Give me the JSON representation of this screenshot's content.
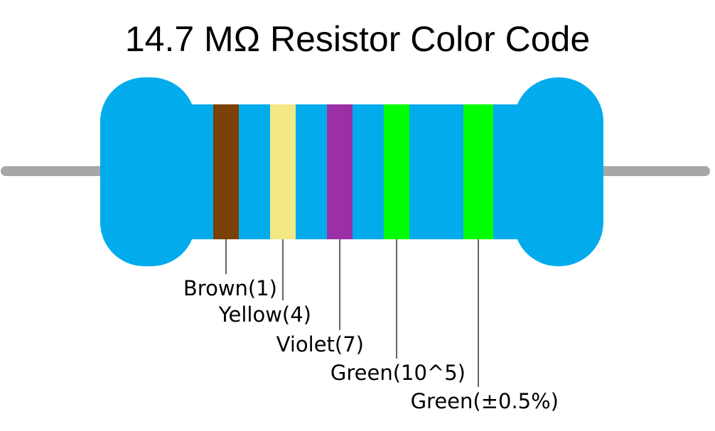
{
  "title": "14.7 MΩ Resistor Color Code",
  "colors": {
    "body": "#02acec",
    "lead": "#a7a7a9",
    "leader_line": "#000000"
  },
  "bands": [
    {
      "name": "Brown",
      "label": "Brown(1)",
      "color": "#7b4003"
    },
    {
      "name": "Yellow",
      "label": "Yellow(4)",
      "color": "#f2e885"
    },
    {
      "name": "Violet",
      "label": "Violet(7)",
      "color": "#9b2fa5"
    },
    {
      "name": "Green",
      "label": "Green(10^5)",
      "color": "#00ff00"
    },
    {
      "name": "Green",
      "label": "Green(±0.5%)",
      "color": "#00ff00"
    }
  ]
}
